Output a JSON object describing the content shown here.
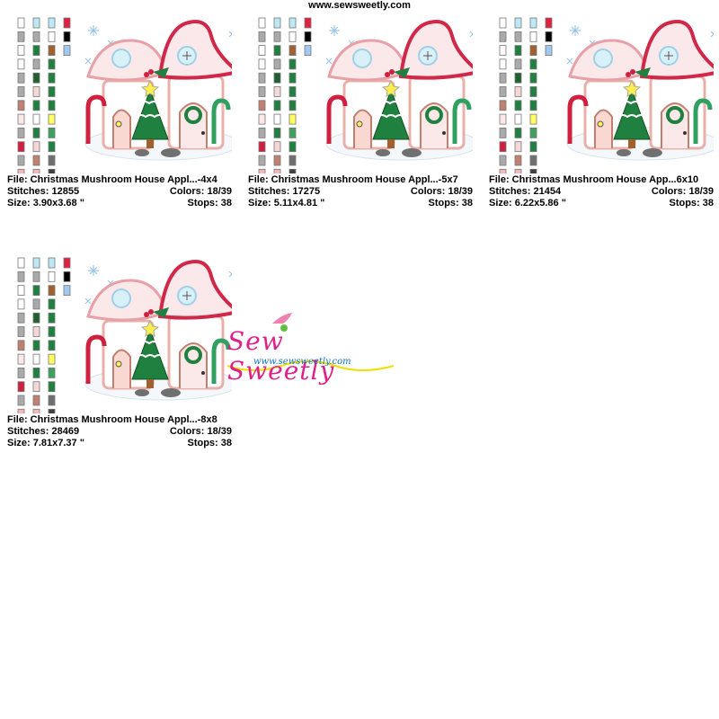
{
  "header": {
    "url": "www.sewsweetly.com"
  },
  "swatches": [
    [
      "#ffffff",
      "#aaaaaa",
      "#ffffff",
      "#ffffff",
      "#aaaaaa",
      "#aaaaaa",
      "#c08070",
      "#fce8e8",
      "#aaaaaa",
      "#d02040",
      "#aaaaaa",
      "#f4b8b8",
      "#aaaaaa"
    ],
    [
      "#bde8f5",
      "#aaaaaa",
      "#208040",
      "#aaaaaa",
      "#206030",
      "#f4d8d8",
      "#208040",
      "#ffffff",
      "#208040",
      "#f4d8d8",
      "#c08070",
      "#f4b8b8",
      "#90c070"
    ],
    [
      "#bde8f5",
      "#ffffff",
      "#a06030",
      "#208040",
      "#208040",
      "#208040",
      "#208040",
      "#ffff60",
      "#40a060",
      "#208040",
      "#707070",
      "#404040",
      "#c08070"
    ],
    [
      "#e02040",
      "#000000",
      "#a0c8f0"
    ]
  ],
  "cards": [
    {
      "file": "File: Christmas Mushroom House Appl...-4x4",
      "stitches": "Stitches: 12855",
      "colors": "Colors: 18/39",
      "size": "Size: 3.90x3.68 \"",
      "stops": "Stops: 38"
    },
    {
      "file": "File: Christmas Mushroom House Appl...-5x7",
      "stitches": "Stitches: 17275",
      "colors": "Colors: 18/39",
      "size": "Size: 5.11x4.81 \"",
      "stops": "Stops: 38"
    },
    {
      "file": "File: Christmas Mushroom House App...6x10",
      "stitches": "Stitches: 21454",
      "colors": "Colors: 18/39",
      "size": "Size: 6.22x5.86 \"",
      "stops": "Stops: 38"
    },
    {
      "file": "File: Christmas Mushroom House Appl...-8x8",
      "stitches": "Stitches: 28469",
      "colors": "Colors: 18/39",
      "size": "Size: 7.81x7.37 \"",
      "stops": "Stops: 38"
    }
  ],
  "logo": {
    "name": "Sew Sweetly",
    "url": "www.sewsweetly.com"
  }
}
